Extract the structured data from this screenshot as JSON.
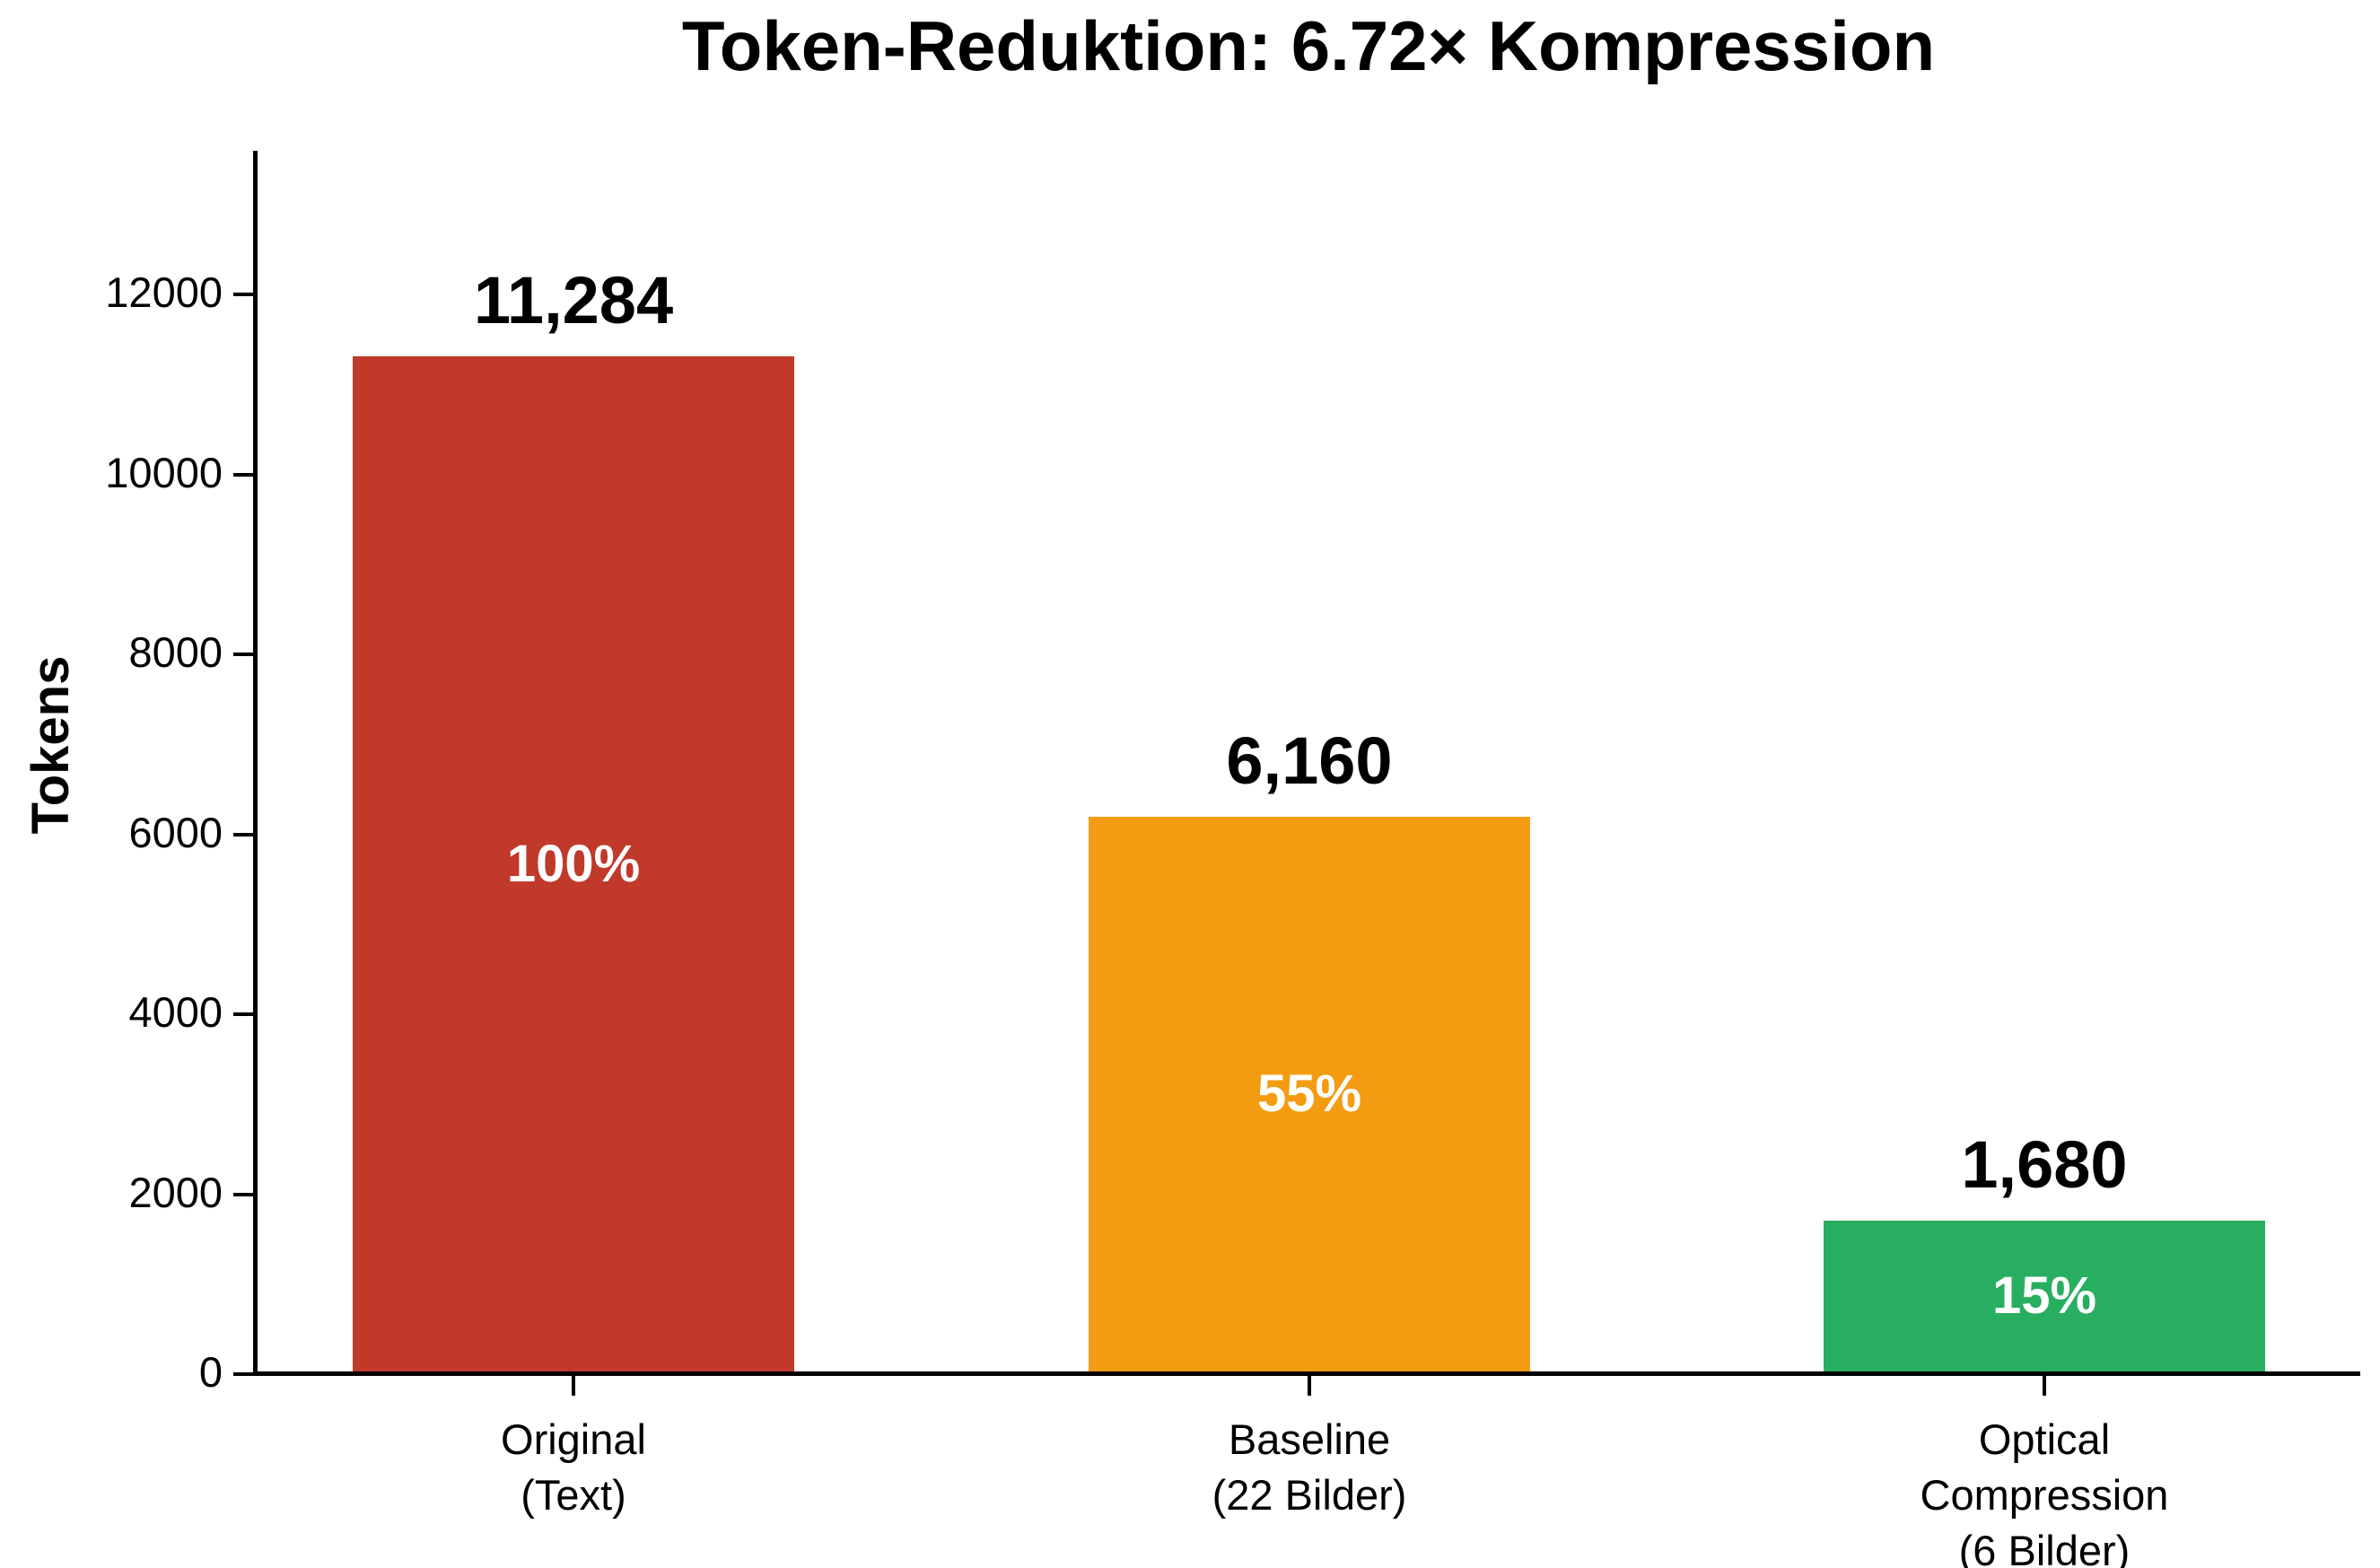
{
  "background": "#ffffff",
  "text_color": "#000000",
  "percent_text_color": "#ffffff",
  "chart_data": {
    "type": "bar",
    "title": "Token-Reduktion: 6.72× Kompression",
    "xlabel": "",
    "ylabel": "Tokens",
    "categories": [
      "Original\n(Text)",
      "Baseline\n(22 Bilder)",
      "Optical\nCompression\n(6 Bilder)"
    ],
    "values": [
      11284,
      6160,
      1680
    ],
    "value_labels": [
      "11,284",
      "6,160",
      "1,680"
    ],
    "percent_labels": [
      "100%",
      "55%",
      "15%"
    ],
    "bar_colors": [
      "#c0392b",
      "#f39c12",
      "#27ae60"
    ],
    "yticks": [
      0,
      2000,
      4000,
      6000,
      8000,
      10000,
      12000
    ],
    "ylim": [
      0,
      13560
    ],
    "grid": false,
    "legend": null
  }
}
